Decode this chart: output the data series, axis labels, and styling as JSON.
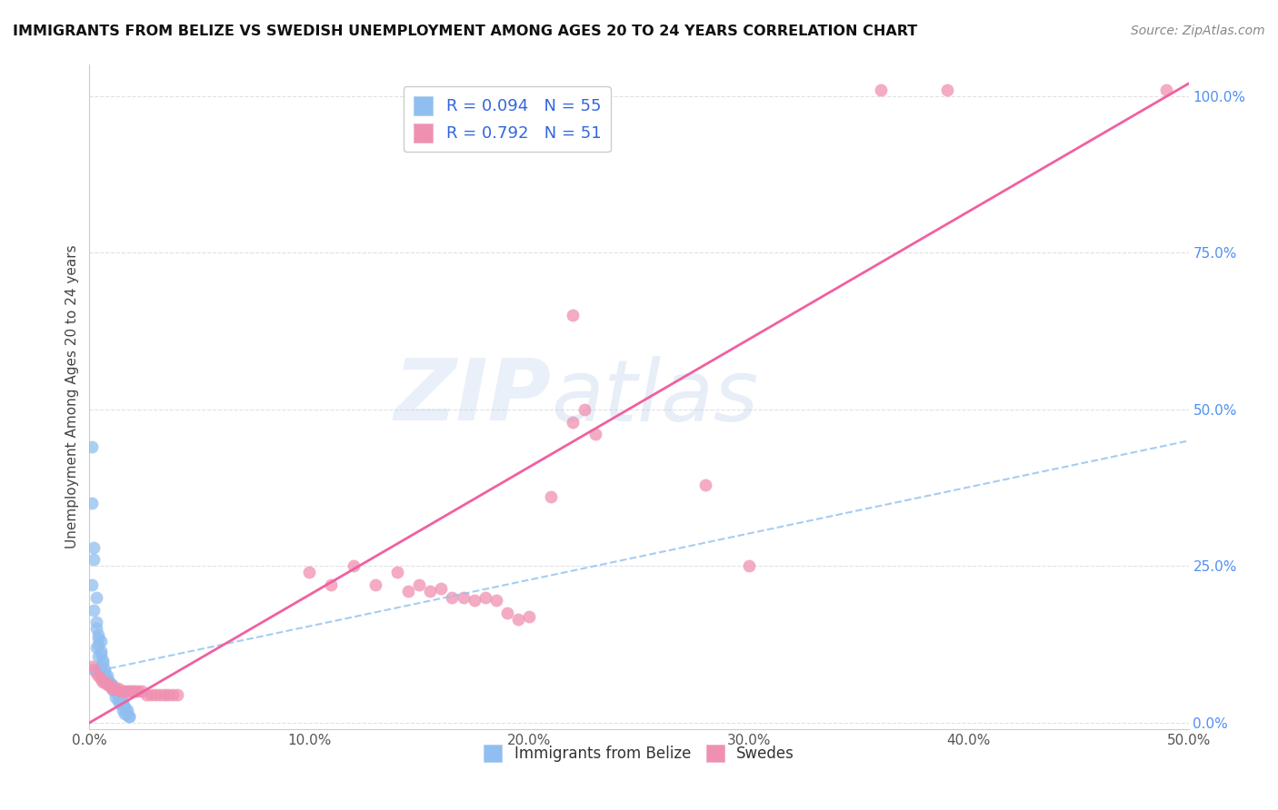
{
  "title": "IMMIGRANTS FROM BELIZE VS SWEDISH UNEMPLOYMENT AMONG AGES 20 TO 24 YEARS CORRELATION CHART",
  "source": "Source: ZipAtlas.com",
  "ylabel": "Unemployment Among Ages 20 to 24 years",
  "xlim": [
    0.0,
    0.5
  ],
  "ylim": [
    -0.01,
    1.05
  ],
  "xticks": [
    0.0,
    0.1,
    0.2,
    0.3,
    0.4,
    0.5
  ],
  "xtick_labels": [
    "0.0%",
    "10.0%",
    "20.0%",
    "30.0%",
    "40.0%",
    "50.0%"
  ],
  "yticks_right": [
    0.0,
    0.25,
    0.5,
    0.75,
    1.0
  ],
  "ytick_labels_right": [
    "0.0%",
    "25.0%",
    "50.0%",
    "75.0%",
    "100.0%"
  ],
  "blue_dots": [
    [
      0.001,
      0.44
    ],
    [
      0.001,
      0.35
    ],
    [
      0.002,
      0.28
    ],
    [
      0.002,
      0.26
    ],
    [
      0.001,
      0.22
    ],
    [
      0.003,
      0.2
    ],
    [
      0.002,
      0.18
    ],
    [
      0.003,
      0.16
    ],
    [
      0.003,
      0.15
    ],
    [
      0.004,
      0.14
    ],
    [
      0.004,
      0.135
    ],
    [
      0.005,
      0.13
    ],
    [
      0.004,
      0.125
    ],
    [
      0.003,
      0.12
    ],
    [
      0.005,
      0.115
    ],
    [
      0.005,
      0.11
    ],
    [
      0.004,
      0.105
    ],
    [
      0.006,
      0.1
    ],
    [
      0.006,
      0.095
    ],
    [
      0.005,
      0.09
    ],
    [
      0.007,
      0.085
    ],
    [
      0.007,
      0.08
    ],
    [
      0.006,
      0.08
    ],
    [
      0.008,
      0.075
    ],
    [
      0.008,
      0.07
    ],
    [
      0.007,
      0.07
    ],
    [
      0.009,
      0.065
    ],
    [
      0.009,
      0.065
    ],
    [
      0.008,
      0.065
    ],
    [
      0.01,
      0.06
    ],
    [
      0.01,
      0.06
    ],
    [
      0.009,
      0.06
    ],
    [
      0.011,
      0.055
    ],
    [
      0.011,
      0.055
    ],
    [
      0.01,
      0.055
    ],
    [
      0.012,
      0.05
    ],
    [
      0.012,
      0.05
    ],
    [
      0.011,
      0.05
    ],
    [
      0.013,
      0.045
    ],
    [
      0.013,
      0.045
    ],
    [
      0.012,
      0.04
    ],
    [
      0.014,
      0.04
    ],
    [
      0.014,
      0.04
    ],
    [
      0.013,
      0.035
    ],
    [
      0.015,
      0.035
    ],
    [
      0.015,
      0.03
    ],
    [
      0.014,
      0.03
    ],
    [
      0.016,
      0.025
    ],
    [
      0.016,
      0.025
    ],
    [
      0.015,
      0.02
    ],
    [
      0.017,
      0.02
    ],
    [
      0.017,
      0.015
    ],
    [
      0.016,
      0.015
    ],
    [
      0.018,
      0.01
    ],
    [
      0.018,
      0.01
    ]
  ],
  "pink_dots": [
    [
      0.001,
      0.09
    ],
    [
      0.002,
      0.085
    ],
    [
      0.003,
      0.08
    ],
    [
      0.004,
      0.075
    ],
    [
      0.005,
      0.07
    ],
    [
      0.006,
      0.065
    ],
    [
      0.007,
      0.065
    ],
    [
      0.008,
      0.06
    ],
    [
      0.009,
      0.06
    ],
    [
      0.01,
      0.055
    ],
    [
      0.011,
      0.055
    ],
    [
      0.012,
      0.055
    ],
    [
      0.013,
      0.055
    ],
    [
      0.014,
      0.05
    ],
    [
      0.015,
      0.05
    ],
    [
      0.016,
      0.05
    ],
    [
      0.017,
      0.05
    ],
    [
      0.018,
      0.05
    ],
    [
      0.019,
      0.05
    ],
    [
      0.02,
      0.05
    ],
    [
      0.021,
      0.05
    ],
    [
      0.022,
      0.05
    ],
    [
      0.024,
      0.05
    ],
    [
      0.026,
      0.045
    ],
    [
      0.028,
      0.045
    ],
    [
      0.03,
      0.045
    ],
    [
      0.032,
      0.045
    ],
    [
      0.034,
      0.045
    ],
    [
      0.036,
      0.045
    ],
    [
      0.038,
      0.045
    ],
    [
      0.04,
      0.045
    ],
    [
      0.1,
      0.24
    ],
    [
      0.11,
      0.22
    ],
    [
      0.12,
      0.25
    ],
    [
      0.13,
      0.22
    ],
    [
      0.14,
      0.24
    ],
    [
      0.145,
      0.21
    ],
    [
      0.15,
      0.22
    ],
    [
      0.155,
      0.21
    ],
    [
      0.16,
      0.215
    ],
    [
      0.165,
      0.2
    ],
    [
      0.17,
      0.2
    ],
    [
      0.175,
      0.195
    ],
    [
      0.18,
      0.2
    ],
    [
      0.185,
      0.195
    ],
    [
      0.19,
      0.175
    ],
    [
      0.195,
      0.165
    ],
    [
      0.2,
      0.17
    ],
    [
      0.21,
      0.36
    ],
    [
      0.22,
      0.48
    ],
    [
      0.225,
      0.5
    ],
    [
      0.23,
      0.46
    ]
  ],
  "pink_dots_isolated": [
    [
      0.22,
      0.65
    ],
    [
      0.28,
      0.38
    ],
    [
      0.3,
      0.25
    ],
    [
      0.36,
      1.01
    ],
    [
      0.39,
      1.01
    ],
    [
      0.49,
      1.01
    ]
  ],
  "blue_line_x": [
    0.0,
    0.5
  ],
  "blue_line_y": [
    0.08,
    0.45
  ],
  "pink_line_x": [
    0.0,
    0.5
  ],
  "pink_line_y": [
    0.0,
    1.02
  ],
  "watermark_zip": "ZIP",
  "watermark_atlas": "atlas",
  "blue_color": "#90bef0",
  "pink_color": "#f090b0",
  "trend_blue_color": "#90c0f0",
  "trend_pink_color": "#f060a0",
  "right_axis_color": "#5090f0",
  "grid_color": "#e0e0e8",
  "background_color": "#ffffff",
  "title_color": "#111111",
  "source_color": "#888888"
}
